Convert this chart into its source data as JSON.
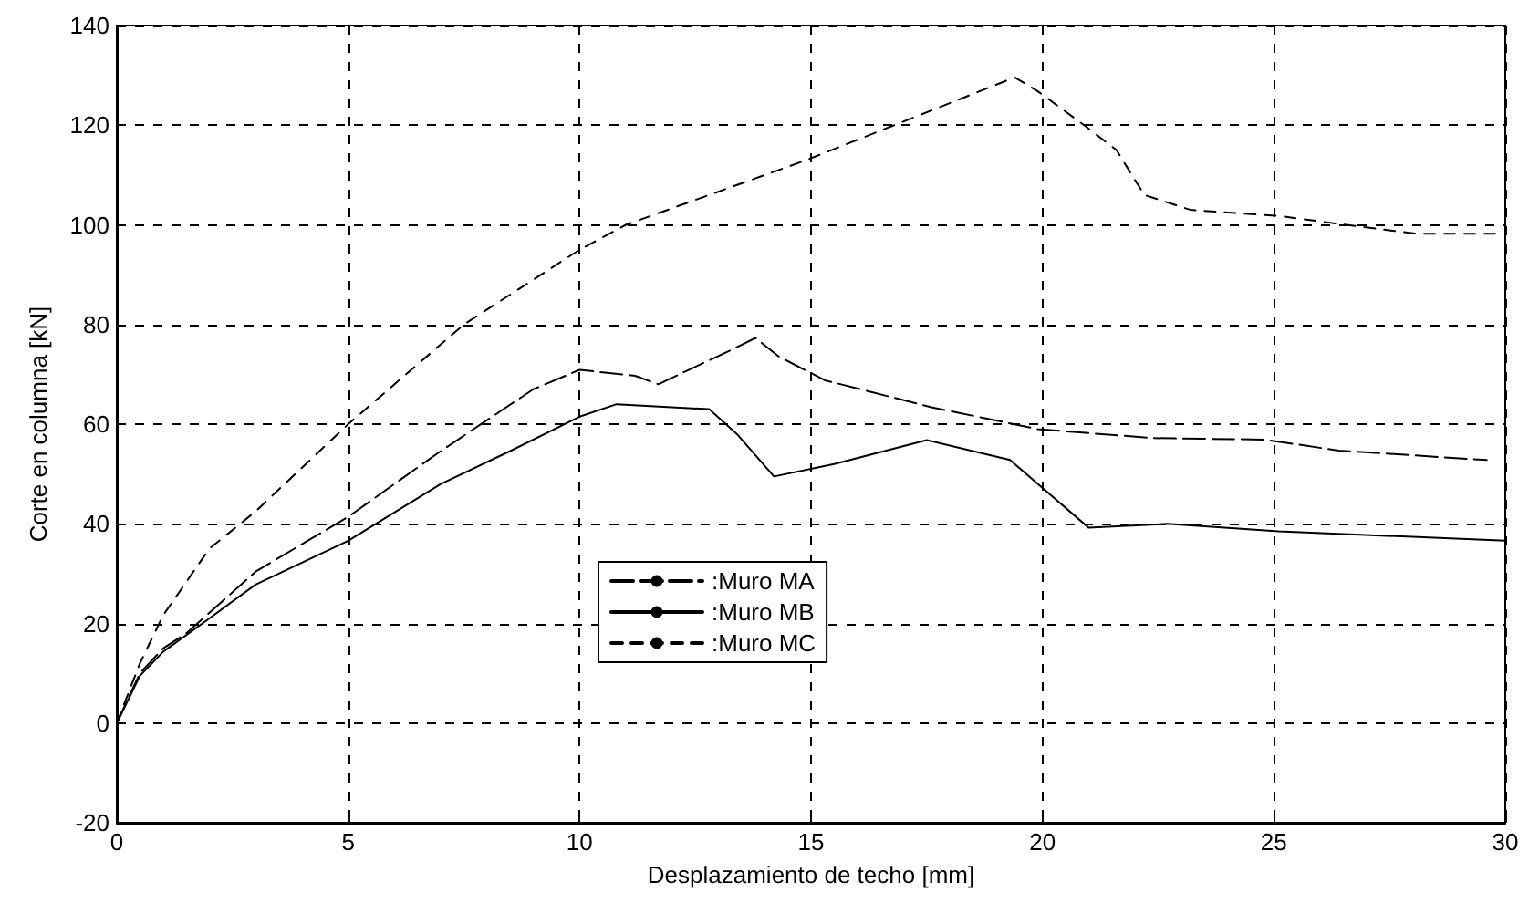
{
  "chart_data": {
    "type": "line",
    "xlabel": "Desplazamiento de techo [mm]",
    "ylabel": "Corte en columna [kN]",
    "xlim": [
      0,
      30
    ],
    "xticks": [
      0,
      5,
      10,
      15,
      20,
      25,
      30
    ],
    "ylim": [
      -20,
      140
    ],
    "yticks": [
      -20,
      0,
      20,
      40,
      60,
      80,
      100,
      120,
      140
    ],
    "grid": true,
    "legend": "bottom",
    "marker": "none",
    "series": [
      {
        "name": ":Muro MA",
        "color": "#000000",
        "line_style": "dashed",
        "x": [
          0,
          0.5,
          1,
          1.5,
          3,
          5,
          7,
          9,
          10,
          11.2,
          11.7,
          13.3,
          13.8,
          14.3,
          15.3,
          17.6,
          19.9,
          22.4,
          24.8,
          26.4,
          29.6
        ],
        "values": [
          0,
          10,
          15,
          18,
          30.4,
          41.4,
          54.6,
          67,
          70.9,
          69.7,
          68,
          75,
          77.3,
          73.6,
          68.8,
          63.4,
          59,
          57.2,
          56.9,
          54.7,
          52.8
        ]
      },
      {
        "name": ":Muro MB",
        "color": "#000000",
        "line_style": "solid",
        "x": [
          0,
          0.5,
          1,
          2,
          3,
          5,
          7,
          8.5,
          10,
          10.8,
          12.8,
          13.4,
          14.2,
          15.5,
          17.5,
          19.3,
          19.9,
          21,
          22.7,
          25.1,
          30
        ],
        "values": [
          0,
          9.5,
          14.3,
          21,
          27.8,
          36.6,
          48,
          54.6,
          61.5,
          64,
          63,
          58,
          49.5,
          52,
          56.8,
          52.8,
          48,
          39.2,
          40,
          38.5,
          36.6
        ]
      },
      {
        "name": ":Muro MC",
        "color": "#000000",
        "line_style": "dotted",
        "x": [
          0,
          0.5,
          1,
          2,
          3,
          5,
          7.5,
          10,
          11,
          14.9,
          19.4,
          19.9,
          20.9,
          21.6,
          22.2,
          23.2,
          25.1,
          26.8,
          28.1,
          29.9
        ],
        "values": [
          0,
          12,
          21.6,
          35,
          42.5,
          60,
          80,
          95,
          100,
          113,
          129.6,
          126.8,
          120,
          115,
          106,
          103,
          101.8,
          99.7,
          98.2,
          98.2
        ]
      }
    ]
  }
}
